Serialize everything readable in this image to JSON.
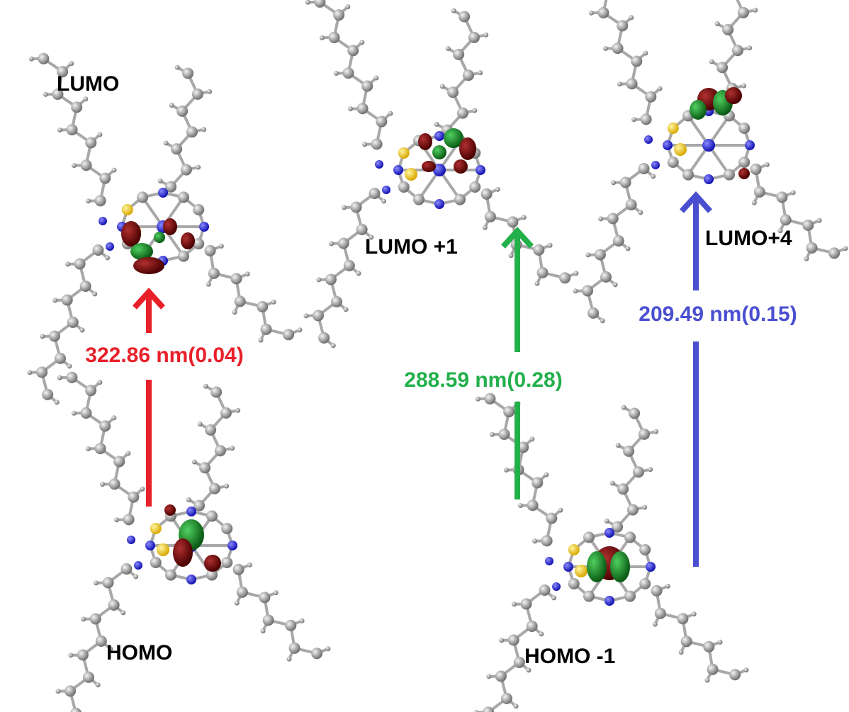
{
  "orbitals": [
    {
      "label": "LUMO"
    },
    {
      "label": "LUMO +1"
    },
    {
      "label": "LUMO+4"
    },
    {
      "label": "HOMO"
    },
    {
      "label": "HOMO -1"
    }
  ],
  "transitions": [
    {
      "label": "322.86 nm(0.04)",
      "color": "#e8202a"
    },
    {
      "label": "288.59 nm(0.28)",
      "color": "#22b04b"
    },
    {
      "label": "209.49 nm(0.15)",
      "color": "#4a4fd0"
    }
  ]
}
